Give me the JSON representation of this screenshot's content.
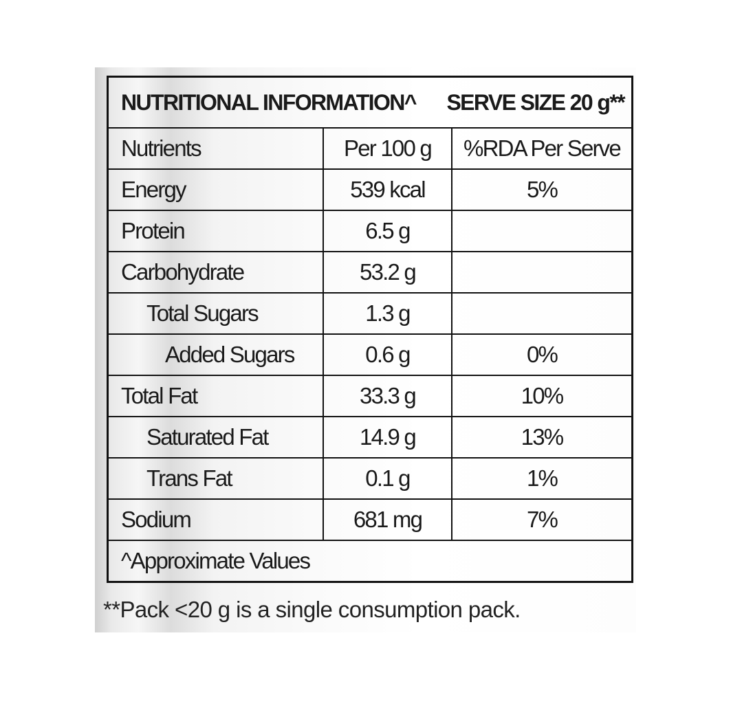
{
  "header": {
    "title": "NUTRITIONAL INFORMATION^",
    "serve_size": "SERVE SIZE 20 g**"
  },
  "columns": [
    "Nutrients",
    "Per 100 g",
    "%RDA Per Serve"
  ],
  "rows": [
    {
      "nutrient": "Energy",
      "per100": "539 kcal",
      "rda": "5%",
      "indent": 0
    },
    {
      "nutrient": "Protein",
      "per100": "6.5 g",
      "rda": "",
      "indent": 0
    },
    {
      "nutrient": "Carbohydrate",
      "per100": "53.2 g",
      "rda": "",
      "indent": 0
    },
    {
      "nutrient": "Total Sugars",
      "per100": "1.3 g",
      "rda": "",
      "indent": 1
    },
    {
      "nutrient": "Added Sugars",
      "per100": "0.6 g",
      "rda": "0%",
      "indent": 2
    },
    {
      "nutrient": "Total Fat",
      "per100": "33.3 g",
      "rda": "10%",
      "indent": 0
    },
    {
      "nutrient": "Saturated Fat",
      "per100": "14.9 g",
      "rda": "13%",
      "indent": 1
    },
    {
      "nutrient": "Trans Fat",
      "per100": "0.1 g",
      "rda": "1%",
      "indent": 1
    },
    {
      "nutrient": "Sodium",
      "per100": "681 mg",
      "rda": "7%",
      "indent": 0
    }
  ],
  "approx_note": "^Approximate Values",
  "footnote": "**Pack <20 g is a single consumption pack."
}
